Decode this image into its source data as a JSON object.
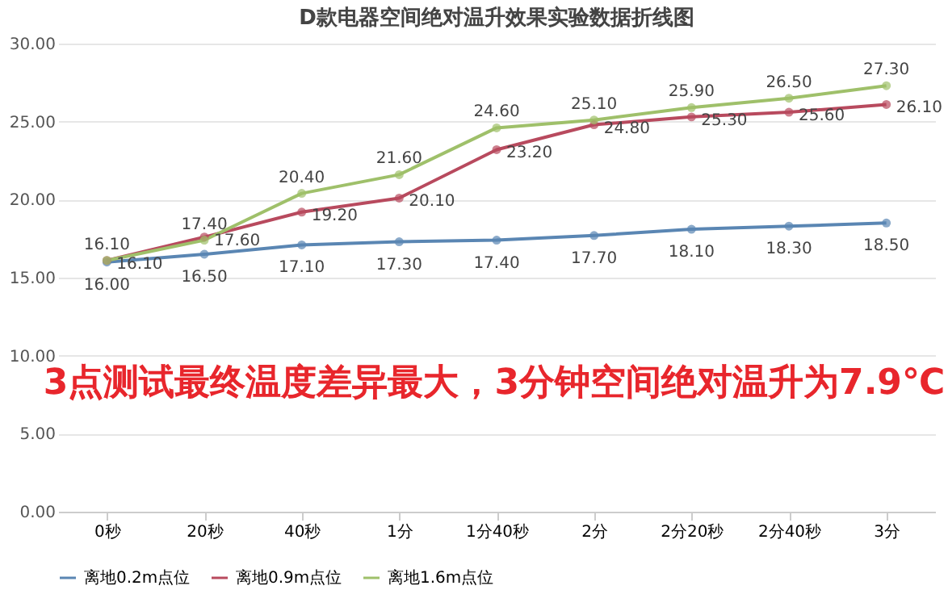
{
  "chart_data": {
    "type": "line",
    "title": "D款电器空间绝对温升效果实验数据折线图",
    "categories": [
      "0秒",
      "20秒",
      "40秒",
      "1分",
      "1分40秒",
      "2分",
      "2分20秒",
      "2分40秒",
      "3分"
    ],
    "series": [
      {
        "name": "离地0.2m点位",
        "color": "#5a86b3",
        "values": [
          16.0,
          16.5,
          17.1,
          17.3,
          17.4,
          17.7,
          18.1,
          18.3,
          18.5
        ],
        "value_labels": [
          "16.00",
          "16.50",
          "17.10",
          "17.30",
          "17.40",
          "17.70",
          "18.10",
          "18.30",
          "18.50"
        ]
      },
      {
        "name": "离地0.9m点位",
        "color": "#b84a5e",
        "values": [
          16.1,
          17.6,
          19.2,
          20.1,
          23.2,
          24.8,
          25.3,
          25.6,
          26.1
        ],
        "value_labels": [
          "16.10",
          "17.60",
          "19.20",
          "20.10",
          "23.20",
          "24.80",
          "25.30",
          "25.60",
          "26.10"
        ]
      },
      {
        "name": "离地1.6m点位",
        "color": "#9fc06a",
        "values": [
          16.1,
          17.4,
          20.4,
          21.6,
          24.6,
          25.1,
          25.9,
          26.5,
          27.3
        ],
        "value_labels": [
          "16.10",
          "17.40",
          "20.40",
          "21.60",
          "24.60",
          "25.10",
          "25.90",
          "26.50",
          "27.30"
        ]
      }
    ],
    "ylim": [
      0,
      30
    ],
    "yticks": [
      {
        "value": 0,
        "label": "0.00"
      },
      {
        "value": 5,
        "label": "5.00"
      },
      {
        "value": 10,
        "label": "10.00"
      },
      {
        "value": 15,
        "label": "15.00"
      },
      {
        "value": 20,
        "label": "20.00"
      },
      {
        "value": 25,
        "label": "25.00"
      },
      {
        "value": 30,
        "label": "30.00"
      }
    ],
    "grid": "y",
    "legend": "bottom",
    "marker": "circle",
    "line_style": "solid",
    "annotations": [
      "3点测试最终温度差异最大，3分钟空间绝对温升为7.9℃"
    ]
  }
}
